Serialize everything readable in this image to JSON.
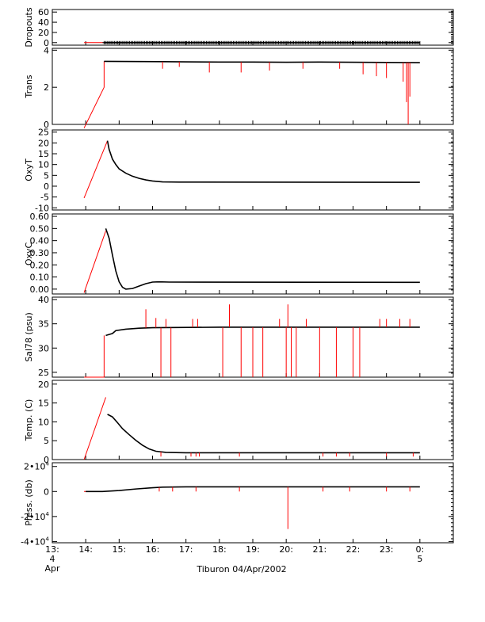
{
  "chart_data": {
    "type": "line",
    "xlabel": "Tiburon 04/Apr/2002",
    "x_ticks": [
      {
        "hour": 13,
        "label": "13:",
        "sub1": "4",
        "sub2": "Apr"
      },
      {
        "hour": 14,
        "label": "14:"
      },
      {
        "hour": 15,
        "label": "15:"
      },
      {
        "hour": 16,
        "label": "16:"
      },
      {
        "hour": 17,
        "label": "17:"
      },
      {
        "hour": 18,
        "label": "18:"
      },
      {
        "hour": 19,
        "label": "19:"
      },
      {
        "hour": 20,
        "label": "20:"
      },
      {
        "hour": 21,
        "label": "21:"
      },
      {
        "hour": 22,
        "label": "22:"
      },
      {
        "hour": 23,
        "label": "23:"
      },
      {
        "hour": 24,
        "label": "0:",
        "sub1": "5"
      }
    ],
    "xlim_hours": [
      13,
      25
    ],
    "colors": {
      "primary": "#000000",
      "secondary": "#ff0000"
    },
    "panels": [
      {
        "name": "dropouts",
        "ylabel": "Dropouts",
        "ylim": [
          -5,
          65
        ],
        "ticks": [
          {
            "v": 60,
            "t": "60"
          },
          {
            "v": 40,
            "t": "40"
          },
          {
            "v": 20,
            "t": "20"
          },
          {
            "v": 0,
            "t": "0"
          }
        ],
        "black": [
          [
            14.55,
            0
          ],
          [
            24.0,
            0
          ]
        ],
        "red": [
          [
            13.95,
            0
          ],
          [
            14.55,
            0
          ]
        ],
        "black_marker": "plus"
      },
      {
        "name": "trans",
        "ylabel": "Trans",
        "ylim": [
          0,
          4.1
        ],
        "ticks": [
          {
            "v": 4,
            "t": "4"
          },
          {
            "v": 2,
            "t": "2"
          },
          {
            "v": 0,
            "t": "0"
          }
        ],
        "black": [
          [
            14.55,
            3.4
          ],
          [
            16.3,
            3.38
          ],
          [
            17.0,
            3.37
          ],
          [
            18.0,
            3.36
          ],
          [
            19.0,
            3.36
          ],
          [
            20.0,
            3.35
          ],
          [
            21.0,
            3.36
          ],
          [
            22.0,
            3.35
          ],
          [
            23.0,
            3.34
          ],
          [
            24.0,
            3.33
          ]
        ],
        "red": [
          [
            13.95,
            -0.2
          ],
          [
            14.55,
            2.0
          ],
          [
            14.55,
            3.4
          ]
        ],
        "red_spikes": [
          [
            16.3,
            3.0
          ],
          [
            16.8,
            3.1
          ],
          [
            17.7,
            2.8
          ],
          [
            18.65,
            2.8
          ],
          [
            19.5,
            2.9
          ],
          [
            20.5,
            3.0
          ],
          [
            21.6,
            3.0
          ],
          [
            22.3,
            2.7
          ],
          [
            22.7,
            2.6
          ],
          [
            23.0,
            2.5
          ],
          [
            23.5,
            2.3
          ],
          [
            23.6,
            1.2
          ],
          [
            23.65,
            0.0
          ],
          [
            23.7,
            1.5
          ]
        ]
      },
      {
        "name": "oxyt",
        "ylabel": "OxyT",
        "ylim": [
          -11,
          26
        ],
        "ticks": [
          {
            "v": 25,
            "t": "25"
          },
          {
            "v": 20,
            "t": "20"
          },
          {
            "v": 15,
            "t": "15"
          },
          {
            "v": 10,
            "t": "10"
          },
          {
            "v": 5,
            "t": "5"
          },
          {
            "v": 0,
            "t": "0"
          },
          {
            "v": -5,
            "t": "-5"
          },
          {
            "v": -10,
            "t": "-10"
          }
        ],
        "black": [
          [
            14.65,
            21
          ],
          [
            14.7,
            17
          ],
          [
            14.8,
            12.5
          ],
          [
            14.9,
            10
          ],
          [
            15.0,
            8
          ],
          [
            15.2,
            6
          ],
          [
            15.4,
            4.6
          ],
          [
            15.6,
            3.6
          ],
          [
            15.8,
            2.9
          ],
          [
            16.0,
            2.4
          ],
          [
            16.3,
            2.0
          ],
          [
            16.8,
            1.9
          ],
          [
            24.0,
            1.8
          ]
        ],
        "red": [
          [
            13.95,
            -5.5
          ],
          [
            14.65,
            21
          ]
        ]
      },
      {
        "name": "oxyc",
        "ylabel": "OxyC",
        "ylim": [
          -0.04,
          0.62
        ],
        "ticks": [
          {
            "v": 0.6,
            "t": "0.60"
          },
          {
            "v": 0.5,
            "t": "0.50"
          },
          {
            "v": 0.4,
            "t": "0.40"
          },
          {
            "v": 0.3,
            "t": "0.30"
          },
          {
            "v": 0.2,
            "t": "0.20"
          },
          {
            "v": 0.1,
            "t": "0.10"
          },
          {
            "v": 0.0,
            "t": "0.00"
          }
        ],
        "black": [
          [
            14.6,
            0.5
          ],
          [
            14.7,
            0.42
          ],
          [
            14.8,
            0.28
          ],
          [
            14.9,
            0.15
          ],
          [
            15.0,
            0.06
          ],
          [
            15.1,
            0.015
          ],
          [
            15.2,
            0.0
          ],
          [
            15.4,
            0.005
          ],
          [
            15.6,
            0.025
          ],
          [
            15.8,
            0.045
          ],
          [
            16.0,
            0.058
          ],
          [
            16.2,
            0.06
          ],
          [
            16.5,
            0.058
          ],
          [
            24.0,
            0.056
          ]
        ],
        "red": [
          [
            13.95,
            -0.03
          ],
          [
            14.6,
            0.48
          ]
        ]
      },
      {
        "name": "sal78",
        "ylabel": "Sal78 (psu)",
        "ylim": [
          24,
          40.5
        ],
        "ticks": [
          {
            "v": 40,
            "t": "40"
          },
          {
            "v": 35,
            "t": "35"
          },
          {
            "v": 30,
            "t": "30"
          },
          {
            "v": 25,
            "t": "25"
          }
        ],
        "black": [
          [
            14.6,
            32.6
          ],
          [
            14.8,
            33.0
          ],
          [
            14.9,
            33.6
          ],
          [
            15.2,
            33.9
          ],
          [
            15.6,
            34.1
          ],
          [
            16.0,
            34.2
          ],
          [
            18.0,
            34.3
          ],
          [
            24.0,
            34.3
          ]
        ],
        "red": [
          [
            13.95,
            24.0
          ],
          [
            14.55,
            24.0
          ],
          [
            14.55,
            32.6
          ]
        ],
        "red_spikes": [
          [
            15.8,
            38.0
          ],
          [
            16.1,
            36.2
          ],
          [
            16.25,
            24.0
          ],
          [
            16.4,
            36.0
          ],
          [
            16.55,
            24.0
          ],
          [
            17.2,
            36.0
          ],
          [
            17.35,
            36.0
          ],
          [
            18.1,
            24.0
          ],
          [
            18.3,
            39.0
          ],
          [
            18.65,
            24.0
          ],
          [
            19.0,
            24.0
          ],
          [
            19.3,
            24.0
          ],
          [
            19.8,
            36.0
          ],
          [
            20.0,
            24.0
          ],
          [
            20.05,
            39.0
          ],
          [
            20.15,
            24.0
          ],
          [
            20.3,
            24.0
          ],
          [
            20.6,
            36.0
          ],
          [
            21.0,
            24.0
          ],
          [
            21.5,
            24.0
          ],
          [
            22.0,
            24.0
          ],
          [
            22.2,
            24.0
          ],
          [
            22.8,
            36.0
          ],
          [
            23.0,
            36.0
          ],
          [
            23.4,
            36.0
          ],
          [
            23.7,
            36.0
          ]
        ]
      },
      {
        "name": "temp",
        "ylabel": "Temp. (C)",
        "ylim": [
          0,
          21
        ],
        "ticks": [
          {
            "v": 20,
            "t": "20"
          },
          {
            "v": 15,
            "t": "15"
          },
          {
            "v": 10,
            "t": "10"
          },
          {
            "v": 5,
            "t": "5"
          },
          {
            "v": 0,
            "t": "0"
          }
        ],
        "black": [
          [
            14.65,
            12.0
          ],
          [
            14.8,
            11.3
          ],
          [
            14.95,
            9.8
          ],
          [
            15.1,
            8.2
          ],
          [
            15.3,
            6.6
          ],
          [
            15.5,
            5.1
          ],
          [
            15.7,
            3.8
          ],
          [
            15.9,
            2.8
          ],
          [
            16.1,
            2.2
          ],
          [
            16.4,
            1.9
          ],
          [
            17.0,
            1.8
          ],
          [
            24.0,
            1.8
          ]
        ],
        "red": [
          [
            13.95,
            0.0
          ],
          [
            14.6,
            16.5
          ]
        ],
        "red_spikes": [
          [
            16.25,
            0.8
          ],
          [
            17.15,
            0.8
          ],
          [
            17.3,
            0.8
          ],
          [
            17.4,
            0.8
          ],
          [
            18.6,
            0.8
          ],
          [
            21.1,
            0.8
          ],
          [
            21.5,
            0.8
          ],
          [
            21.9,
            0.8
          ],
          [
            23.0,
            0.8
          ],
          [
            23.8,
            0.8
          ]
        ]
      },
      {
        "name": "press",
        "ylabel": "Press. (db)",
        "ylim": [
          -41000,
          23000
        ],
        "ticks": [
          {
            "v": 20000,
            "m": "2",
            "e": "4"
          },
          {
            "v": 0,
            "t": "0"
          },
          {
            "v": -20000,
            "m": "-2",
            "e": "4"
          },
          {
            "v": -40000,
            "m": "-4",
            "e": "4"
          }
        ],
        "black": [
          [
            14.0,
            0
          ],
          [
            14.5,
            0
          ],
          [
            15.0,
            800
          ],
          [
            15.5,
            2000
          ],
          [
            16.0,
            3000
          ],
          [
            16.3,
            3500
          ],
          [
            17.0,
            3700
          ],
          [
            24.0,
            3700
          ]
        ],
        "red": [
          [
            13.95,
            0
          ],
          [
            14.5,
            0
          ]
        ],
        "red_spikes": [
          [
            16.2,
            0
          ],
          [
            16.6,
            0
          ],
          [
            17.3,
            0
          ],
          [
            18.6,
            0
          ],
          [
            20.05,
            -30000
          ],
          [
            21.1,
            0
          ],
          [
            21.9,
            0
          ],
          [
            23.0,
            0
          ],
          [
            23.7,
            0
          ]
        ]
      }
    ]
  }
}
